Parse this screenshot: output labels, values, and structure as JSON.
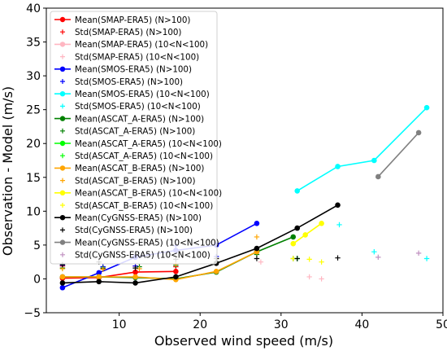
{
  "chart_data": {
    "type": "line",
    "title": "",
    "xlabel": "Observed wind speed (m/s)",
    "ylabel": "Observation - Model (m/s)",
    "xlim": [
      1,
      50
    ],
    "ylim": [
      -5,
      40
    ],
    "xticks": [
      "10",
      "20",
      "30",
      "40",
      "50"
    ],
    "yticks": [
      "−5",
      "0",
      "5",
      "10",
      "15",
      "20",
      "25",
      "30",
      "35",
      "40"
    ],
    "legend_position": "upper-left",
    "series": [
      {
        "name": "Mean(SMAP-ERA5) (N>100)",
        "kind": "mean",
        "color": "#ff0000",
        "points": [
          [
            3,
            0.1
          ],
          [
            7.5,
            0.2
          ],
          [
            12,
            1.0
          ],
          [
            17,
            1.1
          ]
        ]
      },
      {
        "name": "Std(SMAP-ERA5) (N>100)",
        "kind": "std",
        "color": "#ff0000",
        "points": [
          [
            3,
            1.9
          ],
          [
            8,
            1.5
          ],
          [
            12,
            1.9
          ],
          [
            17,
            1.8
          ]
        ]
      },
      {
        "name": "Mean(SMAP-ERA5) (10<N<100)",
        "kind": "mean",
        "color": "#ffb6c1",
        "points": []
      },
      {
        "name": "Std(SMAP-ERA5) (10<N<100)",
        "kind": "std",
        "color": "#ffb6c1",
        "points": [
          [
            27.5,
            2.5
          ],
          [
            33.5,
            0.3
          ],
          [
            35,
            0.0
          ]
        ]
      },
      {
        "name": "Mean(SMOS-ERA5) (N>100)",
        "kind": "mean",
        "color": "#0000ff",
        "points": [
          [
            3,
            -1.3
          ],
          [
            7.5,
            0.9
          ],
          [
            12,
            3.2
          ],
          [
            17,
            4.2
          ],
          [
            22,
            5.0
          ],
          [
            27,
            8.2
          ]
        ]
      },
      {
        "name": "Std(SMOS-ERA5) (N>100)",
        "kind": "std",
        "color": "#0000ff",
        "points": [
          [
            3,
            2.0
          ],
          [
            8,
            1.8
          ],
          [
            12,
            1.9
          ],
          [
            17,
            4.9
          ],
          [
            22,
            3.3
          ],
          [
            27,
            4.2
          ]
        ]
      },
      {
        "name": "Mean(SMOS-ERA5) (10<N<100)",
        "kind": "mean",
        "color": "#00ffff",
        "points": [
          [
            32,
            13.0
          ],
          [
            37,
            16.6
          ],
          [
            41.5,
            17.5
          ],
          [
            48,
            25.3
          ]
        ]
      },
      {
        "name": "Std(SMOS-ERA5) (10<N<100)",
        "kind": "std",
        "color": "#00ffff",
        "points": [
          [
            32,
            3.0
          ],
          [
            37.2,
            8.0
          ],
          [
            41.5,
            4.0
          ],
          [
            48,
            3.0
          ]
        ]
      },
      {
        "name": "Mean(ASCAT_A-ERA5) (N>100)",
        "kind": "mean",
        "color": "#008000",
        "points": [
          [
            3,
            0.3
          ],
          [
            7.5,
            0.3
          ],
          [
            12,
            0.2
          ],
          [
            17,
            0.0
          ],
          [
            22,
            1.0
          ],
          [
            27,
            4.0
          ],
          [
            31.5,
            6.2
          ]
        ]
      },
      {
        "name": "Std(ASCAT_A-ERA5) (N>100)",
        "kind": "std",
        "color": "#008000",
        "points": [
          [
            3,
            1.6
          ],
          [
            8,
            1.6
          ],
          [
            12.5,
            1.8
          ],
          [
            17,
            2.0
          ],
          [
            22,
            2.5
          ],
          [
            27,
            3.6
          ],
          [
            31.5,
            3.0
          ]
        ]
      },
      {
        "name": "Mean(ASCAT_A-ERA5) (10<N<100)",
        "kind": "mean",
        "color": "#00ff00",
        "points": []
      },
      {
        "name": "Std(ASCAT_A-ERA5) (10<N<100)",
        "kind": "std",
        "color": "#00ff00",
        "points": [
          [
            32,
            3.0
          ]
        ]
      },
      {
        "name": "Mean(ASCAT_B-ERA5) (N>100)",
        "kind": "mean",
        "color": "#ffa500",
        "points": [
          [
            3,
            0.3
          ],
          [
            7.5,
            0.3
          ],
          [
            12,
            0.3
          ],
          [
            17,
            -0.1
          ],
          [
            22,
            1.1
          ],
          [
            27,
            4.0
          ]
        ]
      },
      {
        "name": "Std(ASCAT_B-ERA5) (N>100)",
        "kind": "std",
        "color": "#ffa500",
        "points": [
          [
            3,
            1.5
          ],
          [
            8,
            1.4
          ],
          [
            12.5,
            1.5
          ],
          [
            17,
            2.2
          ],
          [
            22,
            3.0
          ],
          [
            27,
            6.2
          ]
        ]
      },
      {
        "name": "Mean(ASCAT_B-ERA5) (10<N<100)",
        "kind": "mean",
        "color": "#ffff00",
        "points": [
          [
            31.5,
            5.2
          ],
          [
            33,
            6.5
          ],
          [
            35,
            8.2
          ]
        ]
      },
      {
        "name": "Std(ASCAT_B-ERA5) (10<N<100)",
        "kind": "std",
        "color": "#ffff00",
        "points": [
          [
            31.5,
            3.0
          ],
          [
            33.5,
            2.9
          ],
          [
            35,
            2.5
          ]
        ]
      },
      {
        "name": "Mean(CyGNSS-ERA5) (N>100)",
        "kind": "mean",
        "color": "#000000",
        "points": [
          [
            3,
            -0.6
          ],
          [
            7.5,
            -0.4
          ],
          [
            12,
            -0.6
          ],
          [
            17,
            0.3
          ],
          [
            22,
            2.3
          ],
          [
            27,
            4.5
          ],
          [
            32,
            7.5
          ],
          [
            37,
            10.9
          ]
        ]
      },
      {
        "name": "Std(CyGNSS-ERA5) (N>100)",
        "kind": "std",
        "color": "#000000",
        "points": [
          [
            3,
            2.1
          ],
          [
            7.5,
            2.5
          ],
          [
            12,
            1.6
          ],
          [
            17,
            2.9
          ],
          [
            22,
            3.0
          ],
          [
            27,
            3.0
          ],
          [
            32,
            3.0
          ],
          [
            37,
            3.1
          ]
        ]
      },
      {
        "name": "Mean(CyGNSS-ERA5) (10<N<100)",
        "kind": "mean",
        "color": "#808080",
        "points": [
          [
            42,
            15.1
          ],
          [
            47,
            21.6
          ]
        ]
      },
      {
        "name": "Std(CyGNSS-ERA5) (10<N<100)",
        "kind": "std",
        "color": "#c090c0",
        "points": [
          [
            42,
            3.2
          ],
          [
            47,
            3.8
          ]
        ]
      }
    ]
  }
}
